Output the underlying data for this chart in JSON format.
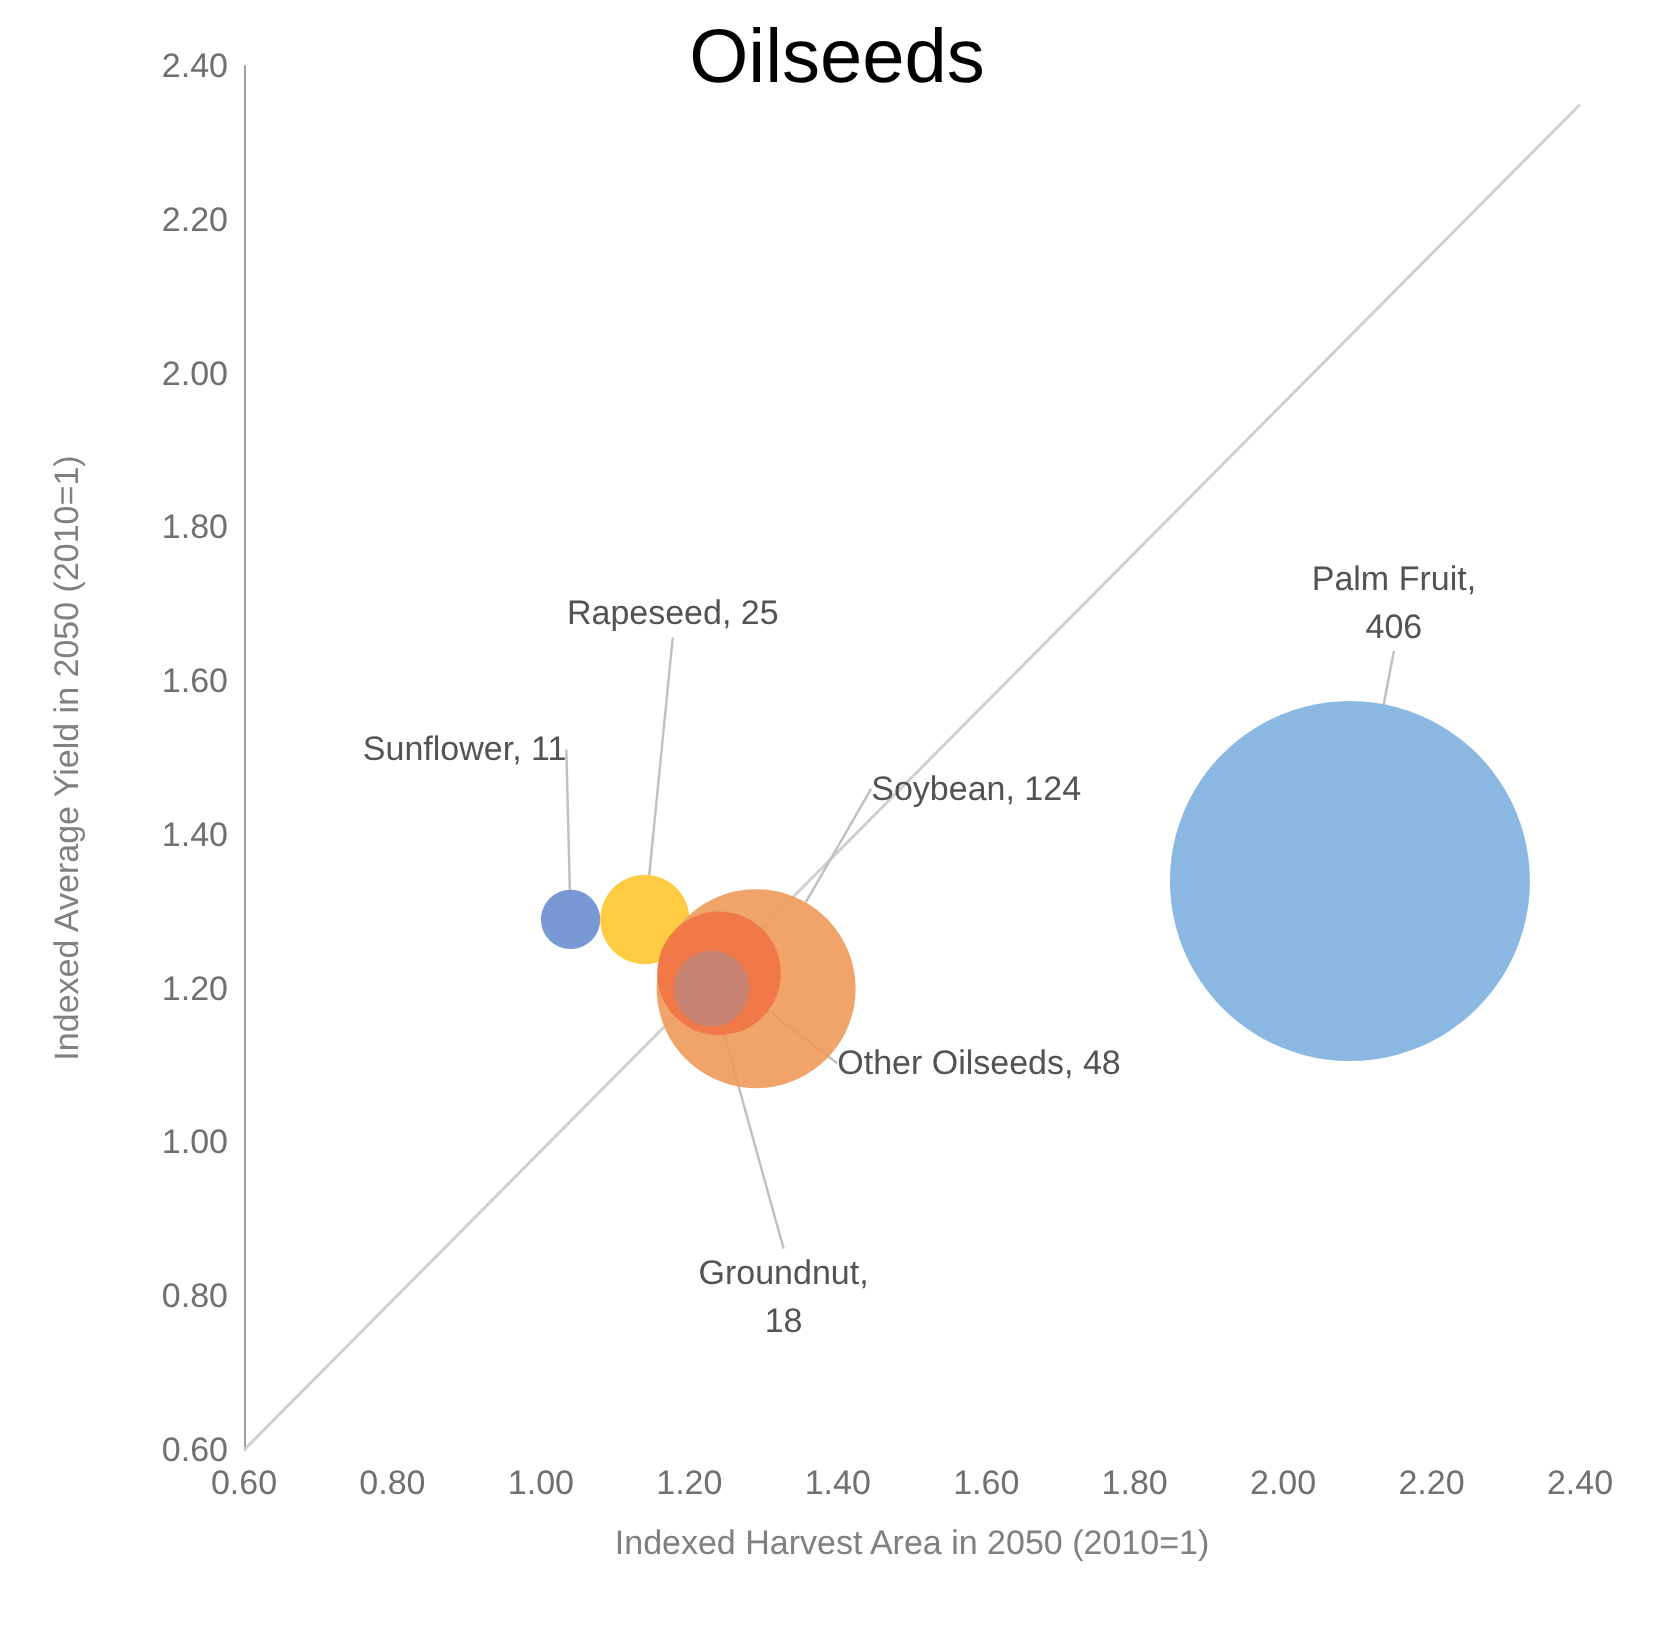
{
  "chart_data": {
    "type": "bubble",
    "title": "Oilseeds",
    "xlabel": "Indexed Harvest Area in 2050 (2010=1)",
    "ylabel": "Indexed Average Yield in 2050 (2010=1)",
    "xlim": [
      0.6,
      2.4
    ],
    "xticks": [
      {
        "value": 0.6,
        "label": "0.60"
      },
      {
        "value": 0.8,
        "label": "0.80"
      },
      {
        "value": 1.0,
        "label": "1.00"
      },
      {
        "value": 1.2,
        "label": "1.20"
      },
      {
        "value": 1.4,
        "label": "1.40"
      },
      {
        "value": 1.6,
        "label": "1.60"
      },
      {
        "value": 1.8,
        "label": "1.80"
      },
      {
        "value": 2.0,
        "label": "2.00"
      },
      {
        "value": 2.2,
        "label": "2.20"
      },
      {
        "value": 2.4,
        "label": "2.40"
      }
    ],
    "ylim": [
      0.6,
      2.4
    ],
    "yticks": [
      {
        "value": 0.6,
        "label": "0.60"
      },
      {
        "value": 0.8,
        "label": "0.80"
      },
      {
        "value": 1.0,
        "label": "1.00"
      },
      {
        "value": 1.2,
        "label": "1.20"
      },
      {
        "value": 1.4,
        "label": "1.40"
      },
      {
        "value": 1.6,
        "label": "1.60"
      },
      {
        "value": 1.8,
        "label": "1.80"
      },
      {
        "value": 2.0,
        "label": "2.00"
      },
      {
        "value": 2.2,
        "label": "2.20"
      },
      {
        "value": 2.4,
        "label": "2.40"
      }
    ],
    "grid": false,
    "marker": "circle",
    "series": [
      {
        "type": "bubble",
        "x": [
          2.09,
          1.04,
          1.14,
          1.29,
          1.24,
          1.23
        ],
        "values": [
          1.34,
          1.29,
          1.29,
          1.2,
          1.22,
          1.2
        ],
        "sizes": [
          406,
          11,
          25,
          124,
          48,
          18
        ],
        "colors": [
          "#7eb0df",
          "#6a8ed2",
          "#fdc62f",
          "#f09a5a",
          "#f07444",
          "#c48478"
        ],
        "value_labels": [
          "Palm Fruit, 406",
          "Sunflower, 11",
          "Rapeseed, 25",
          "Soybean, 124",
          "Other Oilseeds, 48",
          "Groundnut, 18"
        ]
      },
      {
        "type": "line",
        "x": [
          0.6,
          2.4
        ],
        "values": [
          0.6,
          2.35
        ],
        "color": "#d0d0d0",
        "marker": "none",
        "line_style": "solid"
      }
    ]
  }
}
